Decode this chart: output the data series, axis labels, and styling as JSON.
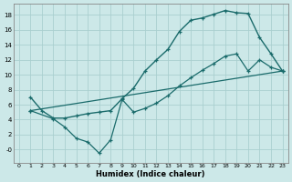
{
  "bg_color": "#cce8e8",
  "grid_color": "#aacfcf",
  "line_color": "#1a6b6b",
  "xlabel": "Humidex (Indice chaleur)",
  "xlim": [
    -0.5,
    23.5
  ],
  "ylim": [
    -1.8,
    19.5
  ],
  "xticks": [
    0,
    1,
    2,
    3,
    4,
    5,
    6,
    7,
    8,
    9,
    10,
    11,
    12,
    13,
    14,
    15,
    16,
    17,
    18,
    19,
    20,
    21,
    22,
    23
  ],
  "yticks": [
    0,
    2,
    4,
    6,
    8,
    10,
    12,
    14,
    16,
    18
  ],
  "ytick_labels": [
    "-0",
    "2",
    "4",
    "6",
    "8",
    "10",
    "12",
    "14",
    "16",
    "18"
  ],
  "curve1_x": [
    1,
    2,
    3,
    4,
    5,
    6,
    7,
    8,
    9,
    10,
    11,
    12,
    13,
    14,
    15,
    16,
    17,
    18,
    19,
    20,
    21,
    22,
    23
  ],
  "curve1_y": [
    7.0,
    5.2,
    4.2,
    4.2,
    4.5,
    4.8,
    5.0,
    5.2,
    6.8,
    8.2,
    10.5,
    12.0,
    13.4,
    15.8,
    17.3,
    17.6,
    18.1,
    18.6,
    18.3,
    18.2,
    15.0,
    12.8,
    10.5
  ],
  "curve2_x": [
    1,
    3,
    4,
    5,
    6,
    7,
    8,
    9,
    10,
    11,
    12,
    13,
    14,
    15,
    16,
    17,
    18,
    19,
    20,
    21,
    22,
    23
  ],
  "curve2_y": [
    5.2,
    4.1,
    3.0,
    1.5,
    1.0,
    -0.5,
    1.3,
    6.7,
    5.0,
    5.5,
    6.2,
    7.2,
    8.5,
    9.6,
    10.6,
    11.5,
    12.5,
    12.8,
    10.5,
    12.0,
    11.0,
    10.5
  ],
  "curve3_x": [
    1,
    23
  ],
  "curve3_y": [
    5.2,
    10.5
  ]
}
